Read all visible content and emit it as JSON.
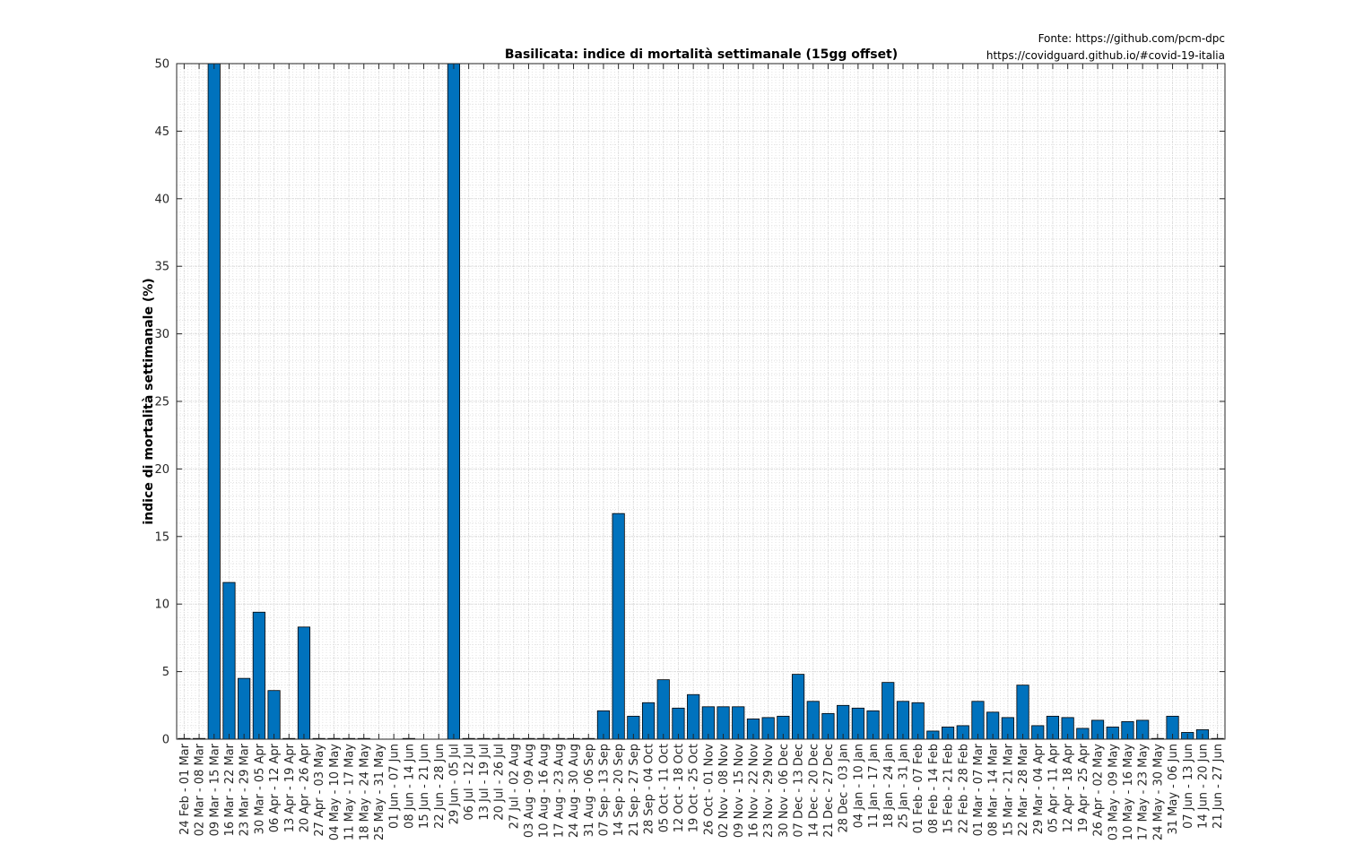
{
  "source": {
    "line1": "Fonte: https://github.com/pcm-dpc",
    "line2": "https://covidguard.github.io/#covid-19-italia"
  },
  "colors": {
    "bar": "#0072BD",
    "axis": "#262626",
    "grid": "#d9d9d9"
  },
  "chart_data": {
    "type": "bar",
    "title": "Basilicata: indice di mortalità settimanale (15gg offset)",
    "xlabel": "",
    "ylabel": "indice di mortalità settimanale (%)",
    "ylim": [
      0,
      50
    ],
    "yticks": [
      0,
      5,
      10,
      15,
      20,
      25,
      30,
      35,
      40,
      45,
      50
    ],
    "grid": true,
    "categories": [
      "24 Feb - 01 Mar",
      "02 Mar - 08 Mar",
      "09 Mar - 15 Mar",
      "16 Mar - 22 Mar",
      "23 Mar - 29 Mar",
      "30 Mar - 05 Apr",
      "06 Apr - 12 Apr",
      "13 Apr - 19 Apr",
      "20 Apr - 26 Apr",
      "27 Apr - 03 May",
      "04 May - 10 May",
      "11 May - 17 May",
      "18 May - 24 May",
      "25 May - 31 May",
      "01 Jun - 07 Jun",
      "08 Jun - 14 Jun",
      "15 Jun - 21 Jun",
      "22 Jun - 28 Jun",
      "29 Jun - 05 Jul",
      "06 Jul - 12 Jul",
      "13 Jul - 19 Jul",
      "20 Jul - 26 Jul",
      "27 Jul - 02 Aug",
      "03 Aug - 09 Aug",
      "10 Aug - 16 Aug",
      "17 Aug - 23 Aug",
      "24 Aug - 30 Aug",
      "31 Aug - 06 Sep",
      "07 Sep - 13 Sep",
      "14 Sep - 20 Sep",
      "21 Sep - 27 Sep",
      "28 Sep - 04 Oct",
      "05 Oct - 11 Oct",
      "12 Oct - 18 Oct",
      "19 Oct - 25 Oct",
      "26 Oct - 01 Nov",
      "02 Nov - 08 Nov",
      "09 Nov - 15 Nov",
      "16 Nov - 22 Nov",
      "23 Nov - 29 Nov",
      "30 Nov - 06 Dec",
      "07 Dec - 13 Dec",
      "14 Dec - 20 Dec",
      "21 Dec - 27 Dec",
      "28 Dec - 03 Jan",
      "04 Jan - 10 Jan",
      "11 Jan - 17 Jan",
      "18 Jan - 24 Jan",
      "25 Jan - 31 Jan",
      "01 Feb - 07 Feb",
      "08 Feb - 14 Feb",
      "15 Feb - 21 Feb",
      "22 Feb - 28 Feb",
      "01 Mar - 07 Mar",
      "08 Mar - 14 Mar",
      "15 Mar - 21 Mar",
      "22 Mar - 28 Mar",
      "29 Mar - 04 Apr",
      "05 Apr - 11 Apr",
      "12 Apr - 18 Apr",
      "19 Apr - 25 Apr",
      "26 Apr - 02 May",
      "03 May - 09 May",
      "10 May - 16 May",
      "17 May - 23 May",
      "24 May - 30 May",
      "31 May - 06 Jun",
      "07 Jun - 13 Jun",
      "14 Jun - 20 Jun",
      "21 Jun - 27 Jun"
    ],
    "values": [
      0,
      0,
      50,
      11.6,
      4.5,
      9.4,
      3.6,
      0,
      8.3,
      0,
      0,
      0,
      0,
      null,
      null,
      0,
      null,
      null,
      50,
      0,
      0,
      0,
      0,
      0,
      0,
      0,
      0,
      0,
      2.1,
      16.7,
      1.7,
      2.7,
      4.4,
      2.3,
      3.3,
      2.4,
      2.4,
      2.4,
      1.5,
      1.6,
      1.7,
      4.8,
      2.8,
      1.9,
      2.5,
      2.3,
      2.1,
      4.2,
      2.8,
      2.7,
      0.6,
      0.9,
      1.0,
      2.8,
      2.0,
      1.6,
      4.0,
      1.0,
      1.7,
      1.6,
      0.8,
      1.4,
      0.9,
      1.3,
      1.4,
      0,
      1.7,
      0.5,
      0.7,
      0
    ]
  }
}
